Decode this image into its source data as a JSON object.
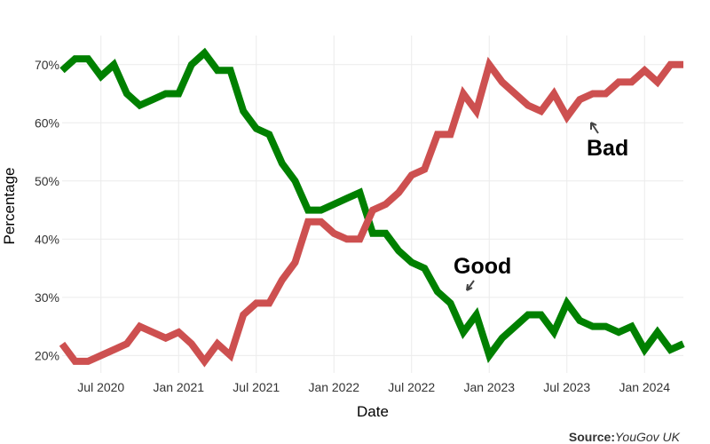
{
  "chart_data": {
    "type": "line",
    "x_label": "Date",
    "y_label": "Percentage",
    "x": [
      "2020-04",
      "2020-05",
      "2020-06",
      "2020-07",
      "2020-08",
      "2020-09",
      "2020-10",
      "2020-11",
      "2020-12",
      "2021-01",
      "2021-02",
      "2021-03",
      "2021-04",
      "2021-05",
      "2021-06",
      "2021-07",
      "2021-08",
      "2021-09",
      "2021-10",
      "2021-11",
      "2021-12",
      "2022-01",
      "2022-02",
      "2022-03",
      "2022-04",
      "2022-05",
      "2022-06",
      "2022-07",
      "2022-08",
      "2022-09",
      "2022-10",
      "2022-11",
      "2022-12",
      "2023-01",
      "2023-02",
      "2023-03",
      "2023-04",
      "2023-05",
      "2023-06",
      "2023-07",
      "2023-08",
      "2023-09",
      "2023-10",
      "2023-11",
      "2023-12",
      "2024-01",
      "2024-02",
      "2024-03",
      "2024-04"
    ],
    "series": [
      {
        "name": "Good",
        "color": "#008000",
        "values": [
          69,
          71,
          71,
          68,
          70,
          65,
          63,
          64,
          65,
          65,
          70,
          72,
          69,
          69,
          62,
          59,
          58,
          53,
          50,
          45,
          45,
          46,
          47,
          48,
          41,
          41,
          38,
          36,
          35,
          31,
          29,
          24,
          27,
          20,
          23,
          25,
          27,
          27,
          24,
          29,
          26,
          25,
          25,
          24,
          25,
          21,
          24,
          21,
          22
        ]
      },
      {
        "name": "Bad",
        "color": "#cd5050",
        "values": [
          22,
          19,
          19,
          20,
          21,
          22,
          25,
          24,
          23,
          24,
          22,
          19,
          22,
          20,
          27,
          29,
          29,
          33,
          36,
          43,
          43,
          41,
          40,
          40,
          45,
          46,
          48,
          51,
          52,
          58,
          58,
          65,
          62,
          70,
          67,
          65,
          63,
          62,
          65,
          61,
          64,
          65,
          65,
          67,
          67,
          69,
          67,
          70,
          70
        ]
      }
    ],
    "xlim": [
      "2020-04",
      "2024-04"
    ],
    "xticks": [
      {
        "value": "2020-07",
        "label": "Jul 2020"
      },
      {
        "value": "2021-01",
        "label": "Jan 2021"
      },
      {
        "value": "2021-07",
        "label": "Jul 2021"
      },
      {
        "value": "2022-01",
        "label": "Jan 2022"
      },
      {
        "value": "2022-07",
        "label": "Jul 2022"
      },
      {
        "value": "2023-01",
        "label": "Jan 2023"
      },
      {
        "value": "2023-07",
        "label": "Jul 2023"
      },
      {
        "value": "2024-01",
        "label": "Jan 2024"
      }
    ],
    "ylim": [
      17,
      75
    ],
    "yticks": [
      {
        "value": 20,
        "label": "20%"
      },
      {
        "value": 30,
        "label": "30%"
      },
      {
        "value": 40,
        "label": "40%"
      },
      {
        "value": 50,
        "label": "50%"
      },
      {
        "value": 60,
        "label": "60%"
      },
      {
        "value": 70,
        "label": "70%"
      }
    ],
    "grid": true,
    "source_label": "Source:",
    "source": "YouGov UK"
  }
}
